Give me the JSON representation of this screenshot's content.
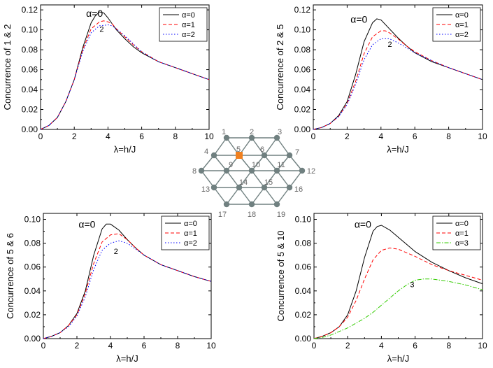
{
  "chart_data": [
    {
      "type": "line",
      "xlabel": "λ=h/J",
      "ylabel": "Concurrence of 1 & 2",
      "xlim": [
        0,
        10
      ],
      "ylim": [
        0,
        0.125
      ],
      "xticks": [
        "0",
        "2",
        "4",
        "6",
        "8",
        "10"
      ],
      "yticks": [
        "0.00",
        "0.02",
        "0.04",
        "0.06",
        "0.08",
        "0.10",
        "0.12"
      ],
      "legend_position": "top-right",
      "annotations": [
        {
          "text": "α=0",
          "x": 2.7,
          "y": 0.113
        },
        {
          "text": "2",
          "x": 3.5,
          "y": 0.098
        }
      ],
      "series": [
        {
          "name": "α=0",
          "color": "#000000",
          "dash": "solid",
          "x": [
            0,
            0.5,
            1,
            1.5,
            2,
            2.5,
            3,
            3.25,
            3.5,
            3.75,
            4,
            4.5,
            5,
            5.5,
            6,
            7,
            8,
            9,
            10
          ],
          "y": [
            0,
            0.004,
            0.012,
            0.028,
            0.05,
            0.082,
            0.107,
            0.114,
            0.118,
            0.117,
            0.112,
            0.1,
            0.091,
            0.083,
            0.077,
            0.068,
            0.062,
            0.056,
            0.05
          ]
        },
        {
          "name": "α=1",
          "color": "#ff0000",
          "dash": "dashed",
          "x": [
            0,
            0.5,
            1,
            1.5,
            2,
            2.5,
            3,
            3.5,
            3.75,
            4,
            4.25,
            4.5,
            5,
            5.5,
            6,
            7,
            8,
            9,
            10
          ],
          "y": [
            0,
            0.004,
            0.012,
            0.028,
            0.05,
            0.08,
            0.101,
            0.108,
            0.109,
            0.108,
            0.106,
            0.101,
            0.093,
            0.085,
            0.078,
            0.068,
            0.062,
            0.056,
            0.05
          ]
        },
        {
          "name": "α=2",
          "color": "#0000ff",
          "dash": "dotted",
          "x": [
            0,
            0.5,
            1,
            1.5,
            2,
            2.5,
            3,
            3.5,
            4,
            4.25,
            4.5,
            5,
            5.5,
            6,
            7,
            8,
            9,
            10
          ],
          "y": [
            0,
            0.004,
            0.012,
            0.028,
            0.05,
            0.078,
            0.097,
            0.104,
            0.105,
            0.104,
            0.101,
            0.094,
            0.086,
            0.078,
            0.068,
            0.062,
            0.056,
            0.05
          ]
        }
      ]
    },
    {
      "type": "line",
      "xlabel": "λ=h/J",
      "ylabel": "Concurrence of 2 & 5",
      "xlim": [
        0,
        10
      ],
      "ylim": [
        0,
        0.125
      ],
      "xticks": [
        "0",
        "2",
        "4",
        "6",
        "8",
        "10"
      ],
      "yticks": [
        "0.00",
        "0.02",
        "0.04",
        "0.06",
        "0.08",
        "0.10",
        "0.12"
      ],
      "legend_position": "top-right",
      "annotations": [
        {
          "text": "α=0",
          "x": 2.2,
          "y": 0.107
        },
        {
          "text": "2",
          "x": 4.4,
          "y": 0.083
        }
      ],
      "series": [
        {
          "name": "α=0",
          "color": "#000000",
          "dash": "solid",
          "x": [
            0,
            0.5,
            1,
            1.5,
            2,
            2.5,
            3,
            3.5,
            3.75,
            4,
            4.5,
            5,
            5.5,
            6,
            7,
            8,
            9,
            10
          ],
          "y": [
            0,
            0.002,
            0.006,
            0.014,
            0.028,
            0.055,
            0.088,
            0.107,
            0.111,
            0.11,
            0.101,
            0.092,
            0.084,
            0.077,
            0.068,
            0.062,
            0.056,
            0.05
          ]
        },
        {
          "name": "α=1",
          "color": "#ff0000",
          "dash": "dashed",
          "x": [
            0,
            0.5,
            1,
            1.5,
            2,
            2.5,
            3,
            3.5,
            4,
            4.25,
            4.5,
            5,
            5.5,
            6,
            7,
            8,
            9,
            10
          ],
          "y": [
            0,
            0.002,
            0.006,
            0.013,
            0.026,
            0.048,
            0.076,
            0.093,
            0.099,
            0.099,
            0.097,
            0.091,
            0.084,
            0.078,
            0.069,
            0.062,
            0.056,
            0.05
          ]
        },
        {
          "name": "α=2",
          "color": "#0000ff",
          "dash": "dotted",
          "x": [
            0,
            0.5,
            1,
            1.5,
            2,
            2.5,
            3,
            3.5,
            4,
            4.5,
            5,
            5.5,
            6,
            7,
            8,
            9,
            10
          ],
          "y": [
            0,
            0.002,
            0.006,
            0.013,
            0.025,
            0.045,
            0.07,
            0.085,
            0.091,
            0.091,
            0.087,
            0.082,
            0.077,
            0.069,
            0.062,
            0.056,
            0.05
          ]
        }
      ]
    },
    {
      "type": "line",
      "xlabel": "λ=h/J",
      "ylabel": "Concurrence of 5 & 6",
      "xlim": [
        0,
        10
      ],
      "ylim": [
        0,
        0.105
      ],
      "xticks": [
        "0",
        "2",
        "4",
        "6",
        "8",
        "10"
      ],
      "yticks": [
        "0.00",
        "0.02",
        "0.04",
        "0.06",
        "0.08",
        "0.10"
      ],
      "legend_position": "top-right",
      "annotations": [
        {
          "text": "α=0",
          "x": 2.1,
          "y": 0.093
        },
        {
          "text": "2",
          "x": 4.2,
          "y": 0.071
        }
      ],
      "series": [
        {
          "name": "α=0",
          "color": "#000000",
          "dash": "solid",
          "x": [
            0,
            0.5,
            1,
            1.5,
            2,
            2.5,
            3,
            3.5,
            3.75,
            4,
            4.5,
            5,
            5.5,
            6,
            7,
            8,
            9,
            10
          ],
          "y": [
            0,
            0.002,
            0.005,
            0.011,
            0.021,
            0.04,
            0.07,
            0.092,
            0.096,
            0.096,
            0.091,
            0.083,
            0.076,
            0.07,
            0.062,
            0.057,
            0.052,
            0.048
          ]
        },
        {
          "name": "α=1",
          "color": "#ff0000",
          "dash": "dashed",
          "x": [
            0,
            0.5,
            1,
            1.5,
            2,
            2.5,
            3,
            3.5,
            4,
            4.5,
            5,
            5.5,
            6,
            7,
            8,
            9,
            10
          ],
          "y": [
            0,
            0.002,
            0.005,
            0.011,
            0.02,
            0.038,
            0.063,
            0.081,
            0.087,
            0.088,
            0.083,
            0.076,
            0.07,
            0.062,
            0.057,
            0.052,
            0.048
          ]
        },
        {
          "name": "α=2",
          "color": "#0000ff",
          "dash": "dotted",
          "x": [
            0,
            0.5,
            1,
            1.5,
            2,
            2.5,
            3,
            3.5,
            4,
            4.5,
            5,
            5.5,
            6,
            7,
            8,
            9,
            10
          ],
          "y": [
            0,
            0.002,
            0.005,
            0.01,
            0.019,
            0.035,
            0.058,
            0.074,
            0.08,
            0.082,
            0.08,
            0.075,
            0.07,
            0.062,
            0.057,
            0.052,
            0.048
          ]
        }
      ]
    },
    {
      "type": "line",
      "xlabel": "λ=h/J",
      "ylabel": "Concurrence of 5 & 10",
      "xlim": [
        0,
        10
      ],
      "ylim": [
        0,
        0.105
      ],
      "xticks": [
        "0",
        "2",
        "4",
        "6",
        "8",
        "10"
      ],
      "yticks": [
        "0.00",
        "0.02",
        "0.04",
        "0.06",
        "0.08",
        "0.10"
      ],
      "legend_position": "top-right",
      "annotations": [
        {
          "text": "α=0",
          "x": 2.4,
          "y": 0.093
        },
        {
          "text": "3",
          "x": 5.7,
          "y": 0.043
        }
      ],
      "series": [
        {
          "name": "α=0",
          "color": "#000000",
          "dash": "solid",
          "x": [
            0,
            0.5,
            1,
            1.5,
            2,
            2.5,
            3,
            3.5,
            3.75,
            4,
            4.5,
            5,
            5.5,
            6,
            7,
            8,
            9,
            10
          ],
          "y": [
            0,
            0.002,
            0.005,
            0.01,
            0.02,
            0.04,
            0.068,
            0.09,
            0.094,
            0.095,
            0.091,
            0.085,
            0.079,
            0.073,
            0.064,
            0.057,
            0.051,
            0.046
          ]
        },
        {
          "name": "α=1",
          "color": "#ff0000",
          "dash": "dashed",
          "x": [
            0,
            0.5,
            1,
            1.5,
            2,
            2.5,
            3,
            3.5,
            4,
            4.5,
            5,
            5.5,
            6,
            7,
            8,
            9,
            10
          ],
          "y": [
            0,
            0.002,
            0.005,
            0.01,
            0.018,
            0.032,
            0.05,
            0.066,
            0.074,
            0.076,
            0.075,
            0.072,
            0.069,
            0.062,
            0.057,
            0.053,
            0.049
          ]
        },
        {
          "name": "α=3",
          "color": "#33cc00",
          "dash": "dashdot",
          "x": [
            0,
            0.5,
            1,
            1.5,
            2,
            2.5,
            3,
            3.5,
            4,
            4.5,
            5,
            5.5,
            6,
            6.5,
            7,
            7.5,
            8,
            9,
            10
          ],
          "y": [
            0,
            0.001,
            0.003,
            0.006,
            0.009,
            0.013,
            0.017,
            0.022,
            0.028,
            0.034,
            0.04,
            0.045,
            0.049,
            0.05,
            0.05,
            0.049,
            0.048,
            0.045,
            0.041
          ]
        }
      ]
    }
  ],
  "lattice": {
    "highlight_color": "#f08020",
    "node_color": "#708080",
    "highlighted_site": "5",
    "site_labels": [
      "1",
      "2",
      "3",
      "4",
      "5",
      "6",
      "7",
      "8",
      "9",
      "10",
      "11",
      "12",
      "13",
      "14",
      "15",
      "16",
      "17",
      "18",
      "19"
    ]
  }
}
